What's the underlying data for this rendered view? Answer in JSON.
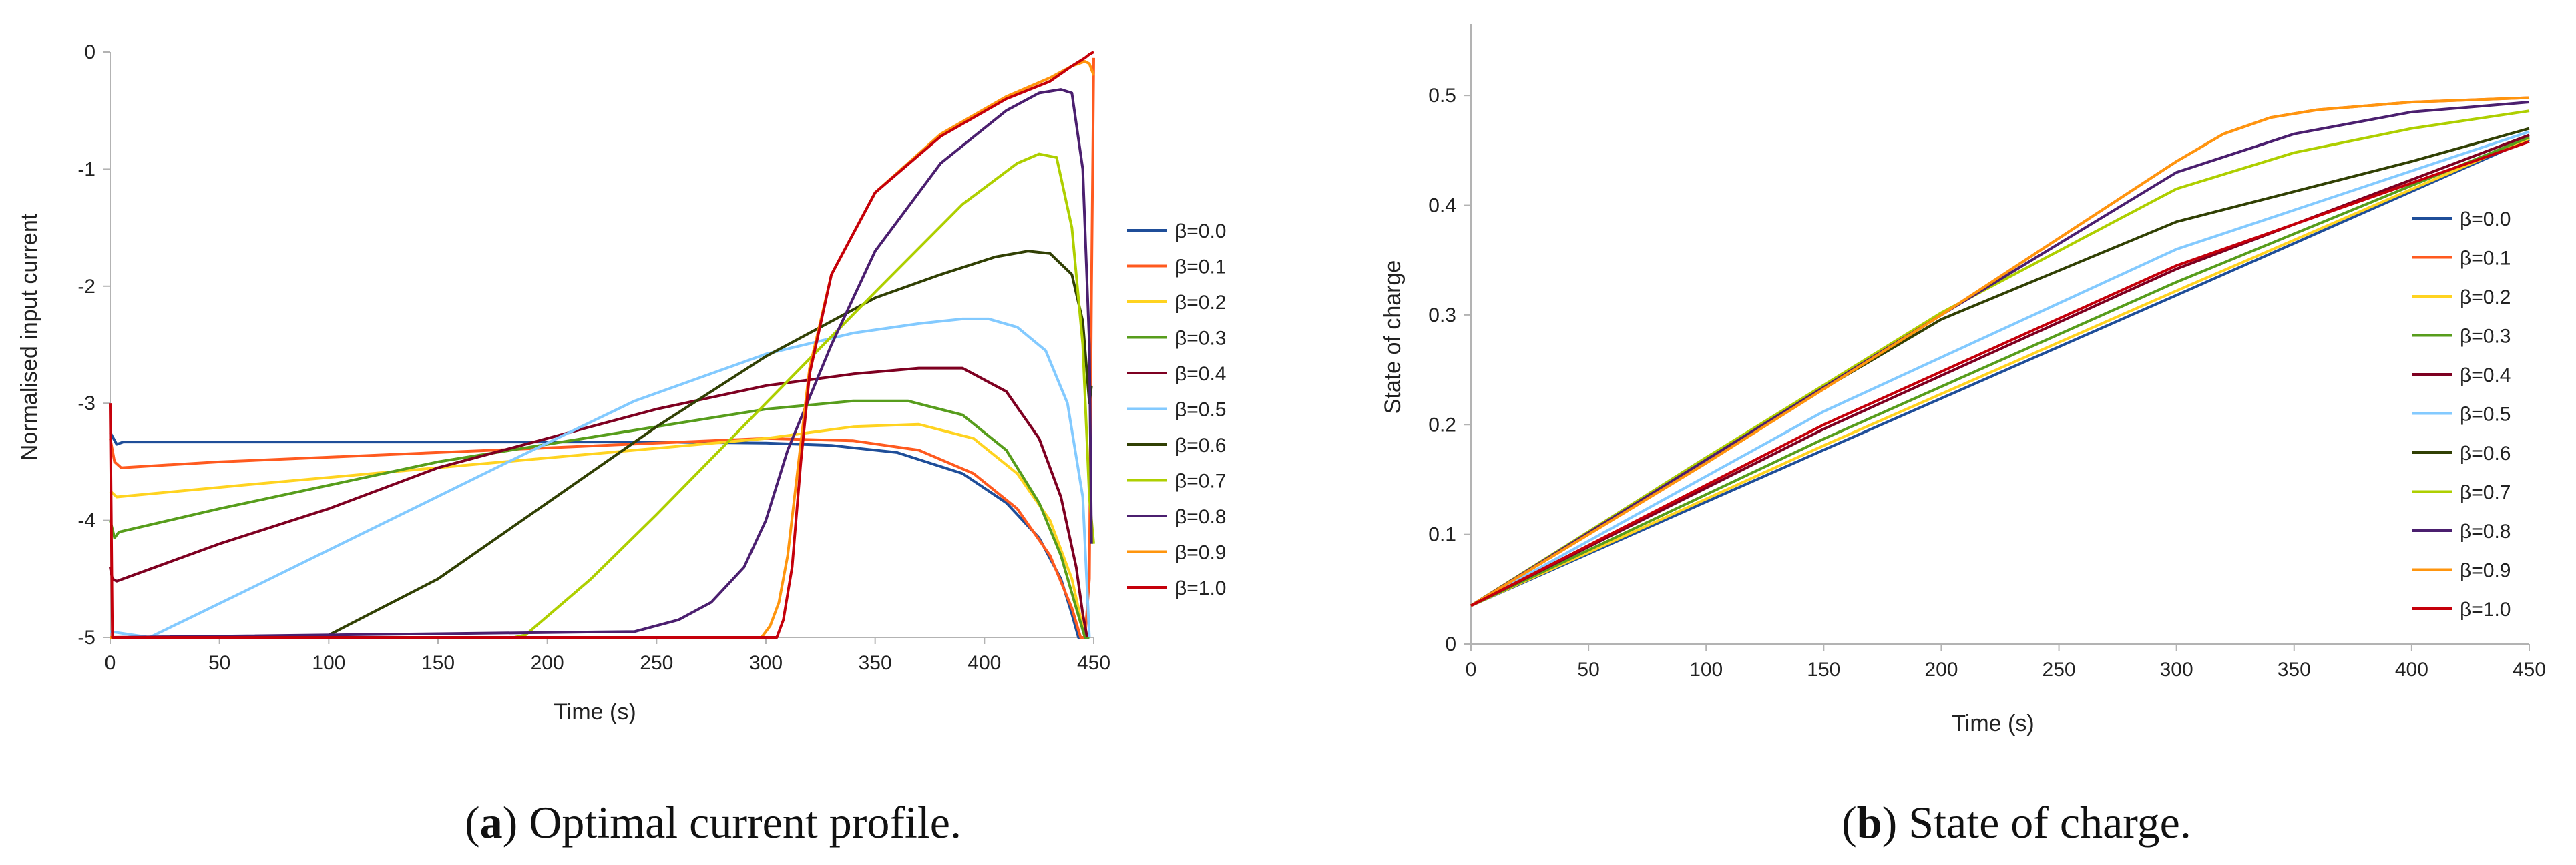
{
  "chart_data": [
    {
      "type": "line",
      "caption_letter": "a",
      "caption_text": "Optimal current profile.",
      "xlabel": "Time (s)",
      "ylabel": "Normalised input current",
      "xlim": [
        0,
        450
      ],
      "ylim": [
        -5,
        0
      ],
      "xticks": [
        0,
        50,
        100,
        150,
        200,
        250,
        300,
        350,
        400,
        450
      ],
      "yticks": [
        0,
        -1,
        -2,
        -3,
        -4,
        -5
      ],
      "grid": false,
      "legend_position": "right",
      "series": [
        {
          "name": "β=0.0",
          "color": "#1f4e99",
          "x": [
            0,
            3,
            6,
            20,
            60,
            100,
            150,
            200,
            250,
            300,
            330,
            360,
            390,
            410,
            425,
            435,
            440,
            443,
            445
          ],
          "y": [
            -3.25,
            -3.35,
            -3.33,
            -3.33,
            -3.33,
            -3.33,
            -3.33,
            -3.33,
            -3.33,
            -3.34,
            -3.36,
            -3.42,
            -3.6,
            -3.85,
            -4.15,
            -4.5,
            -4.8,
            -5.0,
            -5.0
          ]
        },
        {
          "name": "β=0.1",
          "color": "#ff5a1f",
          "x": [
            0,
            2,
            5,
            50,
            100,
            150,
            200,
            250,
            300,
            340,
            370,
            395,
            415,
            430,
            440,
            444,
            446,
            448,
            449,
            450
          ],
          "y": [
            -3.3,
            -3.5,
            -3.55,
            -3.5,
            -3.46,
            -3.42,
            -3.38,
            -3.34,
            -3.3,
            -3.32,
            -3.4,
            -3.6,
            -3.9,
            -4.3,
            -4.75,
            -5.0,
            -5.0,
            -4.5,
            -2.0,
            -0.05
          ]
        },
        {
          "name": "β=0.2",
          "color": "#ffd320",
          "x": [
            0,
            3,
            60,
            120,
            180,
            240,
            300,
            340,
            370,
            395,
            415,
            430,
            440,
            446,
            448
          ],
          "y": [
            -3.75,
            -3.8,
            -3.7,
            -3.6,
            -3.5,
            -3.4,
            -3.3,
            -3.2,
            -3.18,
            -3.3,
            -3.6,
            -4.0,
            -4.5,
            -5.0,
            -5.0
          ]
        },
        {
          "name": "β=0.3",
          "color": "#579d1c",
          "x": [
            0,
            2,
            4,
            50,
            100,
            150,
            200,
            250,
            300,
            340,
            365,
            390,
            410,
            425,
            435,
            442,
            446,
            448
          ],
          "y": [
            -4.0,
            -4.15,
            -4.1,
            -3.9,
            -3.7,
            -3.5,
            -3.35,
            -3.2,
            -3.05,
            -2.98,
            -2.98,
            -3.1,
            -3.4,
            -3.85,
            -4.3,
            -4.75,
            -5.0,
            -5.0
          ]
        },
        {
          "name": "β=0.4",
          "color": "#7e0021",
          "x": [
            0,
            1,
            3,
            50,
            100,
            150,
            200,
            250,
            300,
            340,
            370,
            390,
            410,
            425,
            435,
            442,
            445,
            447
          ],
          "y": [
            -4.4,
            -4.5,
            -4.52,
            -4.2,
            -3.9,
            -3.55,
            -3.3,
            -3.05,
            -2.85,
            -2.75,
            -2.7,
            -2.7,
            -2.9,
            -3.3,
            -3.8,
            -4.4,
            -4.8,
            -5.0
          ]
        },
        {
          "name": "β=0.5",
          "color": "#83caff",
          "x": [
            0,
            18,
            60,
            120,
            180,
            240,
            300,
            340,
            370,
            390,
            402,
            415,
            428,
            438,
            445,
            448
          ],
          "y": [
            -4.95,
            -5.0,
            -4.62,
            -4.07,
            -3.52,
            -2.98,
            -2.58,
            -2.4,
            -2.32,
            -2.28,
            -2.28,
            -2.35,
            -2.55,
            -3.0,
            -3.8,
            -5.0
          ]
        },
        {
          "name": "β=0.6",
          "color": "#314004",
          "x": [
            0,
            95,
            100,
            150,
            200,
            250,
            300,
            350,
            380,
            405,
            420,
            430,
            440,
            445,
            448,
            449
          ],
          "y": [
            -5.0,
            -5.0,
            -4.98,
            -4.5,
            -3.85,
            -3.2,
            -2.6,
            -2.1,
            -1.9,
            -1.75,
            -1.7,
            -1.72,
            -1.9,
            -2.3,
            -3.0,
            -2.85
          ]
        },
        {
          "name": "β=0.7",
          "color": "#aecf00",
          "x": [
            0,
            185,
            190,
            220,
            250,
            300,
            350,
            390,
            415,
            425,
            433,
            440,
            445,
            448,
            450
          ],
          "y": [
            -5.0,
            -5.0,
            -4.98,
            -4.5,
            -3.95,
            -3.0,
            -2.05,
            -1.3,
            -0.95,
            -0.87,
            -0.9,
            -1.5,
            -2.5,
            -3.8,
            -4.2
          ]
        },
        {
          "name": "β=0.8",
          "color": "#4b1f6f",
          "x": [
            0,
            240,
            260,
            275,
            290,
            300,
            310,
            330,
            350,
            380,
            410,
            425,
            435,
            440,
            445,
            448,
            449
          ],
          "y": [
            -5.0,
            -4.95,
            -4.85,
            -4.7,
            -4.4,
            -4.0,
            -3.4,
            -2.5,
            -1.7,
            -0.95,
            -0.5,
            -0.35,
            -0.32,
            -0.35,
            -1.0,
            -2.5,
            -4.2
          ]
        },
        {
          "name": "β=0.9",
          "color": "#ff950e",
          "x": [
            0,
            298,
            302,
            306,
            310,
            315,
            320,
            330,
            350,
            380,
            410,
            430,
            440,
            446,
            448,
            450
          ],
          "y": [
            -5.0,
            -5.0,
            -4.9,
            -4.7,
            -4.3,
            -3.5,
            -2.7,
            -1.9,
            -1.2,
            -0.7,
            -0.38,
            -0.22,
            -0.12,
            -0.08,
            -0.1,
            -0.2
          ]
        },
        {
          "name": "β=1.0",
          "color": "#c5000b",
          "x": [
            0,
            1,
            2,
            305,
            308,
            312,
            316,
            320,
            330,
            350,
            380,
            410,
            430,
            440,
            446,
            448,
            450
          ],
          "y": [
            -3.0,
            -5.0,
            -5.0,
            -5.0,
            -4.85,
            -4.4,
            -3.5,
            -2.75,
            -1.9,
            -1.2,
            -0.72,
            -0.4,
            -0.25,
            -0.12,
            -0.05,
            -0.02,
            0.0
          ]
        }
      ]
    },
    {
      "type": "line",
      "caption_letter": "b",
      "caption_text": "State of charge.",
      "xlabel": "Time (s)",
      "ylabel": "State of charge",
      "xlim": [
        0,
        450
      ],
      "ylim": [
        0,
        0.55
      ],
      "xticks": [
        0,
        50,
        100,
        150,
        200,
        250,
        300,
        350,
        400,
        450
      ],
      "yticks": [
        0,
        0.1,
        0.2,
        0.3,
        0.4,
        0.5
      ],
      "grid": false,
      "legend_position": "right",
      "series": [
        {
          "name": "β=0.0",
          "color": "#1f4e99",
          "x": [
            0,
            150,
            300,
            450
          ],
          "y": [
            0.035,
            0.177,
            0.318,
            0.46
          ]
        },
        {
          "name": "β=0.1",
          "color": "#ff5a1f",
          "x": [
            0,
            100,
            200,
            300,
            320,
            340,
            360,
            400,
            450
          ],
          "y": [
            0.035,
            0.165,
            0.3,
            0.44,
            0.465,
            0.48,
            0.487,
            0.494,
            0.498
          ]
        },
        {
          "name": "β=0.2",
          "color": "#ffd320",
          "x": [
            0,
            150,
            300,
            450
          ],
          "y": [
            0.035,
            0.181,
            0.322,
            0.461
          ]
        },
        {
          "name": "β=0.3",
          "color": "#579d1c",
          "x": [
            0,
            150,
            300,
            450
          ],
          "y": [
            0.035,
            0.187,
            0.33,
            0.462
          ]
        },
        {
          "name": "β=0.4",
          "color": "#7e0021",
          "x": [
            0,
            150,
            300,
            450
          ],
          "y": [
            0.035,
            0.196,
            0.342,
            0.464
          ]
        },
        {
          "name": "β=0.5",
          "color": "#83caff",
          "x": [
            0,
            150,
            300,
            450
          ],
          "y": [
            0.035,
            0.212,
            0.36,
            0.467
          ]
        },
        {
          "name": "β=0.6",
          "color": "#314004",
          "x": [
            0,
            100,
            200,
            300,
            400,
            450
          ],
          "y": [
            0.035,
            0.17,
            0.296,
            0.385,
            0.44,
            0.47
          ]
        },
        {
          "name": "β=0.7",
          "color": "#aecf00",
          "x": [
            0,
            100,
            200,
            300,
            350,
            400,
            450
          ],
          "y": [
            0.035,
            0.17,
            0.302,
            0.415,
            0.448,
            0.47,
            0.486
          ]
        },
        {
          "name": "β=0.8",
          "color": "#4b1f6f",
          "x": [
            0,
            100,
            200,
            300,
            350,
            400,
            450
          ],
          "y": [
            0.035,
            0.168,
            0.3,
            0.43,
            0.465,
            0.485,
            0.494
          ]
        },
        {
          "name": "β=0.9",
          "color": "#ff950e",
          "x": [
            0,
            100,
            200,
            300,
            320,
            340,
            360,
            400,
            450
          ],
          "y": [
            0.035,
            0.165,
            0.3,
            0.44,
            0.465,
            0.48,
            0.487,
            0.494,
            0.498
          ]
        },
        {
          "name": "β=1.0",
          "color": "#c5000b",
          "x": [
            0,
            150,
            300,
            450
          ],
          "y": [
            0.035,
            0.2,
            0.345,
            0.458
          ]
        }
      ]
    }
  ]
}
